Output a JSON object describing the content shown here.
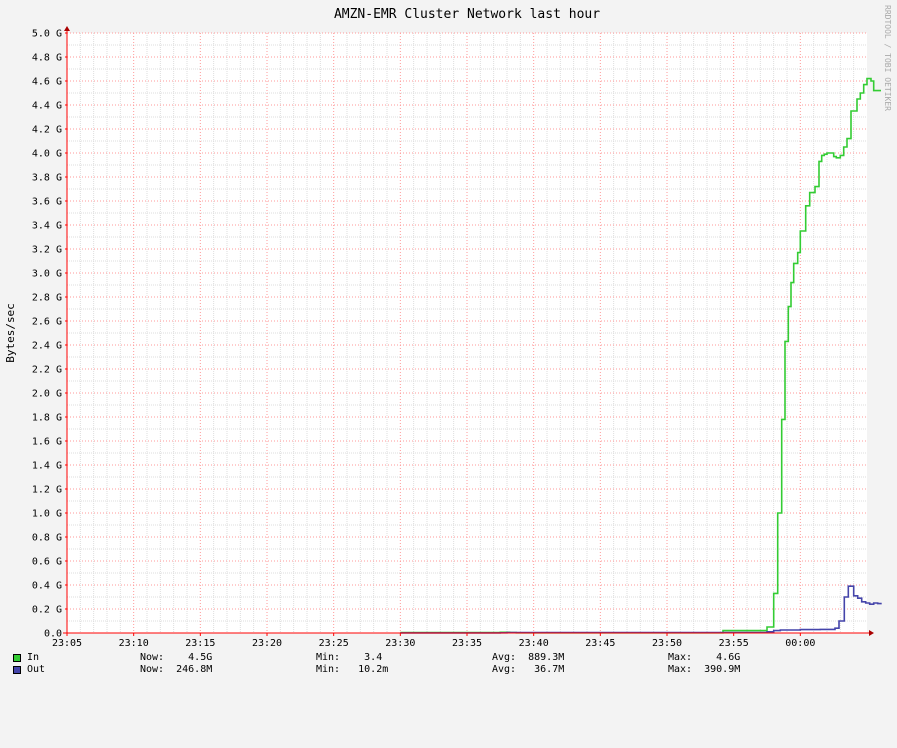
{
  "chart_data": {
    "type": "line",
    "title": "AMZN-EMR Cluster Network last hour",
    "ylabel": "Bytes/sec",
    "watermark": "RRDTOOL / TOBI OETIKER",
    "ylim": [
      0,
      5.0
    ],
    "y_unit": "G",
    "y_ticks": [
      "0.0",
      "0.2 G",
      "0.4 G",
      "0.6 G",
      "0.8 G",
      "1.0 G",
      "1.2 G",
      "1.4 G",
      "1.6 G",
      "1.8 G",
      "2.0 G",
      "2.2 G",
      "2.4 G",
      "2.6 G",
      "2.8 G",
      "3.0 G",
      "3.2 G",
      "3.4 G",
      "3.6 G",
      "3.8 G",
      "4.0 G",
      "4.2 G",
      "4.4 G",
      "4.6 G",
      "4.8 G",
      "5.0 G"
    ],
    "x_ticks": [
      "23:05",
      "23:10",
      "23:15",
      "23:20",
      "23:25",
      "23:30",
      "23:35",
      "23:40",
      "23:45",
      "23:50",
      "23:55",
      "00:00"
    ],
    "x_tick_minutes": [
      0,
      5,
      10,
      15,
      20,
      25,
      30,
      35,
      40,
      45,
      50,
      55
    ],
    "xlim_minutes": [
      0,
      60
    ],
    "grid": true,
    "series": [
      {
        "name": "In",
        "color": "#33cc33",
        "step": true,
        "x_minutes": [
          25.0,
          32.5,
          33.2,
          33.7,
          49.2,
          52.5,
          53.0,
          53.3,
          53.6,
          53.85,
          54.1,
          54.3,
          54.5,
          54.8,
          55.0,
          55.2,
          55.4,
          55.7,
          56.1,
          56.4,
          56.6,
          56.8,
          57.0,
          57.3,
          57.5,
          57.7,
          58.0,
          58.25,
          58.5,
          58.8,
          59.0,
          59.25,
          59.5,
          59.75,
          60.0,
          60.3,
          60.5,
          60.75
        ],
        "values": [
          0.003,
          0.006,
          0.003,
          0.002,
          0.02,
          0.05,
          0.33,
          1.0,
          1.78,
          2.43,
          2.72,
          2.92,
          3.08,
          3.17,
          3.35,
          3.35,
          3.56,
          3.67,
          3.72,
          3.93,
          3.98,
          3.99,
          4.0,
          4.0,
          3.97,
          3.96,
          3.98,
          4.05,
          4.12,
          4.35,
          4.35,
          4.45,
          4.5,
          4.57,
          4.62,
          4.6,
          4.52,
          4.52
        ]
      },
      {
        "name": "Out",
        "color": "#4444aa",
        "step": true,
        "x_minutes": [
          25.0,
          32.5,
          33.0,
          36.0,
          49.2,
          52.5,
          53.0,
          53.5,
          55.0,
          56.5,
          57.6,
          57.9,
          58.3,
          58.6,
          59.0,
          59.3,
          59.6,
          59.9,
          60.2,
          60.5,
          60.8
        ],
        "values": [
          0.001,
          0.002,
          0.004,
          0.003,
          0.004,
          0.01,
          0.02,
          0.025,
          0.028,
          0.03,
          0.04,
          0.1,
          0.3,
          0.39,
          0.31,
          0.29,
          0.26,
          0.25,
          0.24,
          0.25,
          0.245
        ]
      }
    ]
  },
  "legend": {
    "in": {
      "label": "In",
      "color": "#33cc33",
      "now": "Now:    4.5G",
      "min": "Min:    3.4",
      "avg": "Avg:  889.3M",
      "max": "Max:    4.6G"
    },
    "out": {
      "label": "Out",
      "color": "#4444aa",
      "now": "Now:  246.8M",
      "min": "Min:   10.2m",
      "avg": "Avg:   36.7M",
      "max": "Max:  390.9M"
    }
  }
}
